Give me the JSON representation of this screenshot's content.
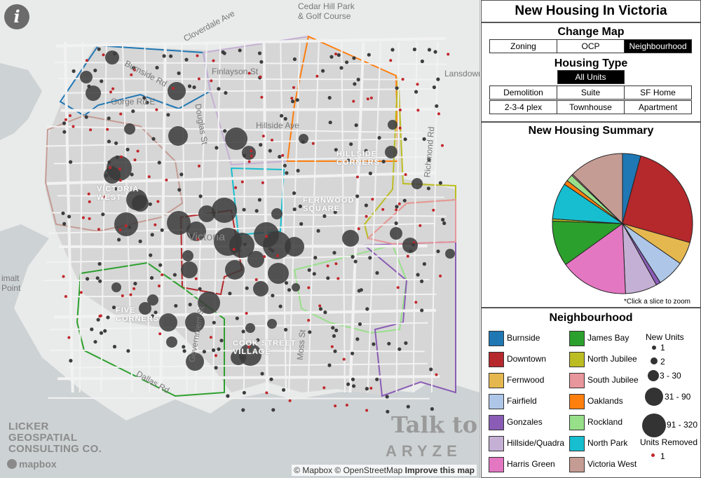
{
  "map": {
    "labels": {
      "cedar_hill": "Cedar Hill Park\n& Golf Course",
      "cloverdale": "Cloverdale Ave",
      "lansdowne": "Lansdowne",
      "burnside_rd": "Burnside Rd",
      "finlayson": "Finlayson St",
      "gorge": "Gorge Rd E",
      "douglas": "Douglas St",
      "hillside": "Hillside Ave",
      "richmond": "Richmond Rd",
      "esquimalt": "imalt\nPoint",
      "moss": "Moss St",
      "dallas": "Dallas Rd",
      "government": "Government St",
      "victoria": "Victoria"
    },
    "neighbourhood_labels": {
      "hillside_quadra": "HILLSIDE\nCORNERS",
      "victoria_west": "VICTORIA\nWEST",
      "fernwood": "FERNWOOD\nSQUARE",
      "fairfield": "FIVE\nCORNERS",
      "cook_street": "COOK STREET\nVILLAGE"
    },
    "info_icon": "i",
    "watermark": "LICKER\nGEOSPATIAL\nCONSULTING CO.",
    "mapbox_logo": "mapbox",
    "brand_talk": "Talk to",
    "brand_aryze": "ARYZE",
    "attribution": "© Mapbox © OpenStreetMap",
    "improve_link": "Improve this map"
  },
  "panel": {
    "title": "New Housing In Victoria",
    "change_map": {
      "title": "Change Map",
      "options": [
        "Zoning",
        "OCP",
        "Neighbourhood"
      ],
      "selected": "Neighbourhood"
    },
    "housing_type": {
      "title": "Housing Type",
      "all_label": "All Units",
      "row1": [
        "Demolition",
        "Suite",
        "SF Home"
      ],
      "row2": [
        "2-3-4 plex",
        "Townhouse",
        "Apartment"
      ]
    },
    "summary": {
      "title": "New Housing Summary",
      "note": "*Click a slice to zoom"
    },
    "legend": {
      "title": "Neighbourhood",
      "items": [
        {
          "name": "Burnside",
          "color": "#1f77b4"
        },
        {
          "name": "Downtown",
          "color": "#b5282c"
        },
        {
          "name": "Fernwood",
          "color": "#e5b84f"
        },
        {
          "name": "Fairfield",
          "color": "#aec7e8"
        },
        {
          "name": "Gonzales",
          "color": "#8a5cb5"
        },
        {
          "name": "Hillside/Quadra",
          "color": "#c5b0d5"
        },
        {
          "name": "Harris Green",
          "color": "#e377c2"
        },
        {
          "name": "James Bay",
          "color": "#2ca02c"
        },
        {
          "name": "North Jubilee",
          "color": "#bcbd22"
        },
        {
          "name": "South Jubilee",
          "color": "#e7969c"
        },
        {
          "name": "Oaklands",
          "color": "#ff7f0e"
        },
        {
          "name": "Rockland",
          "color": "#98df8a"
        },
        {
          "name": "North Park",
          "color": "#17becf"
        },
        {
          "name": "Victoria West",
          "color": "#c49c94"
        }
      ],
      "new_units_title": "New Units",
      "sizes": [
        "1",
        "2",
        "3 - 30",
        "31 - 90",
        "91 - 320"
      ],
      "removed_title": "Units Removed",
      "removed_value": "1"
    }
  },
  "chart_data": {
    "type": "pie",
    "title": "New Housing Summary",
    "slices": [
      {
        "name": "Burnside",
        "value": 4,
        "color": "#1f77b4"
      },
      {
        "name": "Downtown",
        "value": 24,
        "color": "#b5282c"
      },
      {
        "name": "Fernwood",
        "value": 5,
        "color": "#e5b84f"
      },
      {
        "name": "Fairfield",
        "value": 6,
        "color": "#aec7e8"
      },
      {
        "name": "Gonzales",
        "value": 1,
        "color": "#8a5cb5"
      },
      {
        "name": "Hillside/Quadra",
        "value": 7,
        "color": "#c5b0d5"
      },
      {
        "name": "Harris Green",
        "value": 15,
        "color": "#e377c2"
      },
      {
        "name": "James Bay",
        "value": 10,
        "color": "#2ca02c"
      },
      {
        "name": "North Jubilee",
        "value": 0.5,
        "color": "#bcbd22"
      },
      {
        "name": "North Park",
        "value": 8,
        "color": "#17becf"
      },
      {
        "name": "Oaklands",
        "value": 1,
        "color": "#ff7f0e"
      },
      {
        "name": "Rockland",
        "value": 1.5,
        "color": "#98df8a"
      },
      {
        "name": "South Jubilee",
        "value": 0.3,
        "color": "#e7969c"
      },
      {
        "name": "Victoria West",
        "value": 12,
        "color": "#c49c94"
      }
    ]
  }
}
